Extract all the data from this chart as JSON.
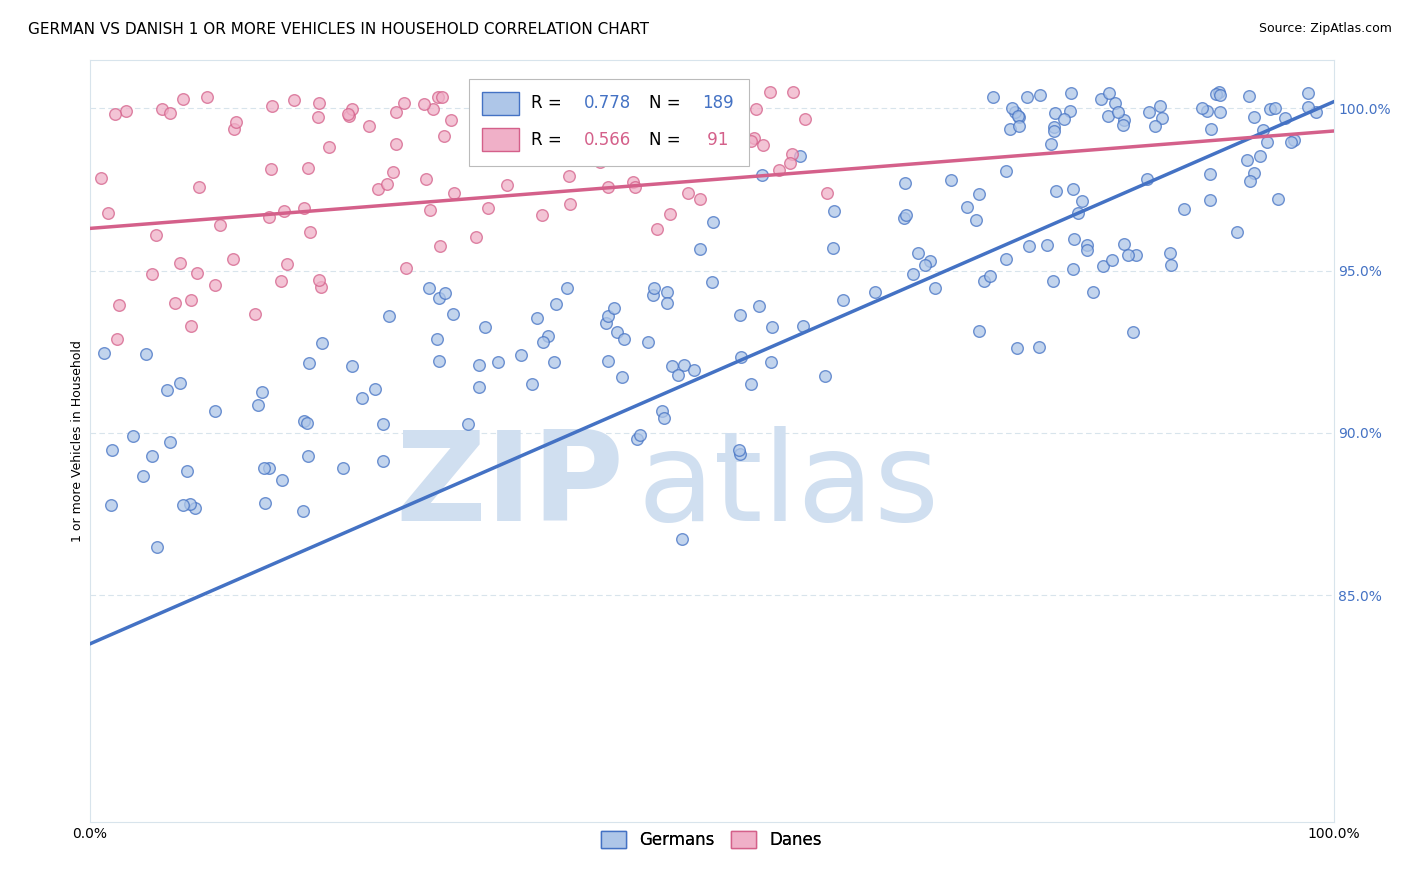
{
  "title": "GERMAN VS DANISH 1 OR MORE VEHICLES IN HOUSEHOLD CORRELATION CHART",
  "source": "Source: ZipAtlas.com",
  "ylabel": "1 or more Vehicles in Household",
  "xlim": [
    0.0,
    1.0
  ],
  "ylim": [
    0.78,
    1.015
  ],
  "yticks": [
    0.85,
    0.9,
    0.95,
    1.0
  ],
  "ytick_labels": [
    "85.0%",
    "90.0%",
    "95.0%",
    "100.0%"
  ],
  "xticks": [
    0.0,
    0.1,
    0.2,
    0.3,
    0.4,
    0.5,
    0.6,
    0.7,
    0.8,
    0.9,
    1.0
  ],
  "german_color": "#aec6e8",
  "danish_color": "#f0b0c8",
  "german_edge_color": "#4472c4",
  "danish_edge_color": "#d4608a",
  "german_line_color": "#4472c4",
  "danish_line_color": "#d4608a",
  "german_R": 0.778,
  "german_N": 189,
  "danish_R": 0.566,
  "danish_N": 91,
  "watermark_zip": "ZIP",
  "watermark_atlas": "atlas",
  "watermark_color": "#d0dff0",
  "background_color": "#ffffff",
  "grid_color": "#d8e4ec",
  "title_fontsize": 11,
  "axis_label_fontsize": 9,
  "tick_fontsize": 10,
  "legend_fontsize": 12,
  "source_fontsize": 9,
  "scatter_size": 70,
  "scatter_alpha": 0.75,
  "scatter_linewidth": 1.0,
  "german_line_y0": 0.835,
  "german_line_y1": 1.002,
  "danish_line_y0": 0.963,
  "danish_line_y1": 0.993
}
